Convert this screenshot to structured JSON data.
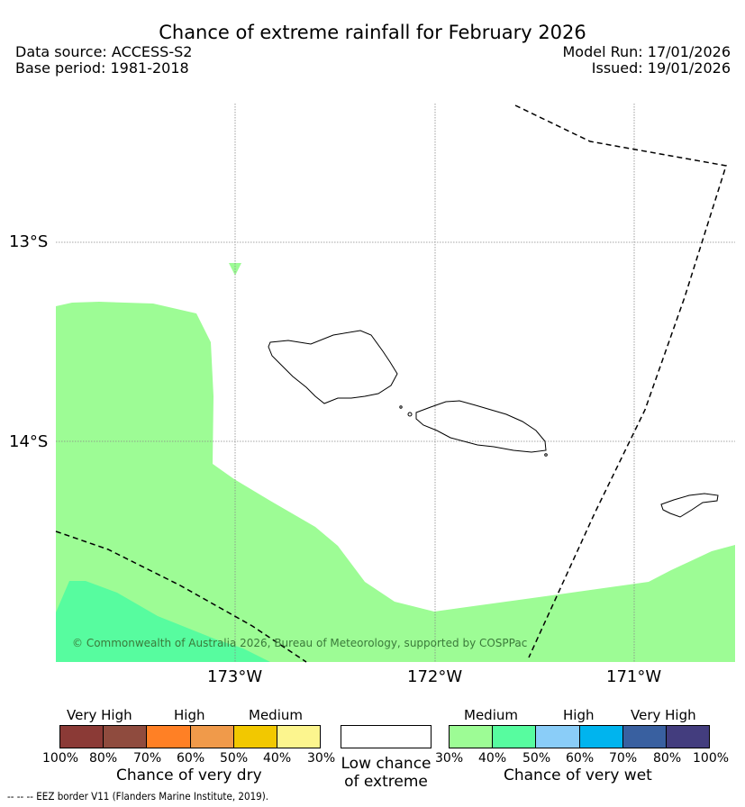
{
  "title": "Chance of extreme rainfall for February 2026",
  "data_source": "Data source: ACCESS-S2",
  "base_period": "Base period: 1981-2018",
  "model_run": "Model Run: 17/01/2026",
  "issued": "Issued: 19/01/2026",
  "map": {
    "lat_labels": [
      "13°S",
      "14°S"
    ],
    "lon_labels": [
      "173°W",
      "172°W",
      "171°W"
    ],
    "copyright": "© Commonwealth of Australia 2026, Bureau of Meteorology, supported by COSPPac",
    "colors": {
      "medium_wet": "#9dfc95",
      "very_wet_40_50": "#57fc9f",
      "coast": "#000000",
      "eez": "#000000"
    }
  },
  "legend": {
    "dry": {
      "group_labels": [
        "Very High",
        "High",
        "Medium"
      ],
      "colors": [
        "#8b3a36",
        "#8f4b3e",
        "#ff8025",
        "#f09a4a",
        "#f2c800",
        "#fcf58e"
      ],
      "ticks": [
        "100%",
        "80%",
        "70%",
        "60%",
        "50%",
        "40%",
        "30%"
      ],
      "caption": "Chance of very dry"
    },
    "low": {
      "color": "#ffffff",
      "caption_line1": "Low chance",
      "caption_line2": "of extreme"
    },
    "wet": {
      "group_labels": [
        "Medium",
        "High",
        "Very High"
      ],
      "colors": [
        "#9dfc95",
        "#57fc9f",
        "#8acdf8",
        "#00b4ee",
        "#3960a0",
        "#433d7e"
      ],
      "ticks": [
        "30%",
        "40%",
        "50%",
        "60%",
        "70%",
        "80%",
        "100%"
      ],
      "caption": "Chance of very wet"
    }
  },
  "eez_note": "-- -- -- EEZ border V11 (Flanders Marine Institute, 2019)."
}
